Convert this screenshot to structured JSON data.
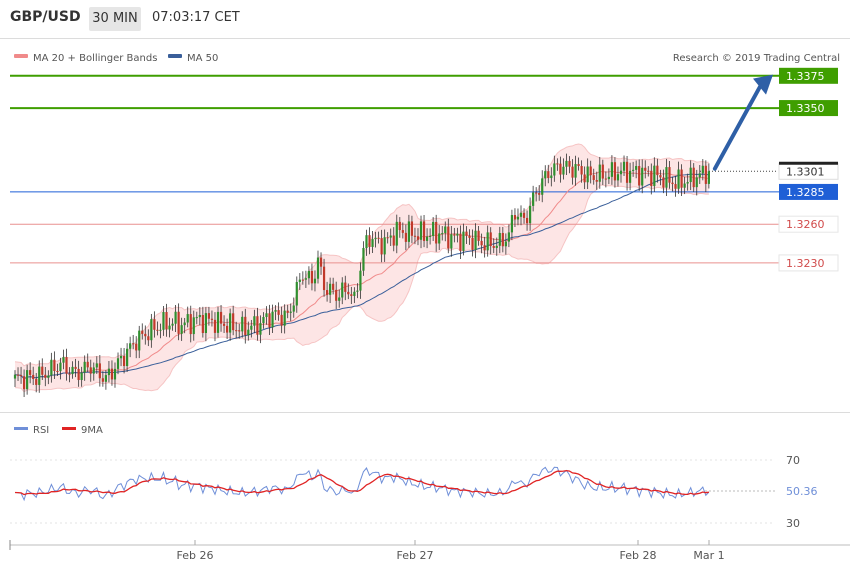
{
  "header": {
    "symbol": "GBP/USD",
    "timeframe": "30 MIN",
    "time": "07:03:17 CET"
  },
  "legend": {
    "ma20": "MA 20 + Bollinger Bands",
    "ma50": "MA 50",
    "credit": "Research © 2019 Trading Central",
    "ma20_color": "#f08a8a",
    "ma50_color": "#3a5f9a"
  },
  "chart_data": {
    "type": "candlestick",
    "y_range": [
      1.3116,
      1.3395
    ],
    "x_ticks": [
      "Feb 26",
      "Feb 27",
      "Feb 28",
      "Mar 1"
    ],
    "current_price": "1.3301",
    "levels": [
      {
        "value": "1.3375",
        "kind": "resistance",
        "color": "#3f9e00"
      },
      {
        "value": "1.3350",
        "kind": "resistance",
        "color": "#3f9e00"
      },
      {
        "value": "1.3285",
        "kind": "pivot",
        "color": "#1f5fd6"
      },
      {
        "value": "1.3260",
        "kind": "support",
        "color": "#e9908f"
      },
      {
        "value": "1.3230",
        "kind": "support",
        "color": "#e9908f"
      }
    ],
    "forecast_arrow": {
      "from": 1.3303,
      "to": 1.3372,
      "color": "#2e5fa6"
    },
    "anchors": [
      [
        0,
        1.314
      ],
      [
        8,
        1.3142
      ],
      [
        12,
        1.3147
      ],
      [
        15,
        1.3152
      ],
      [
        20,
        1.3144
      ],
      [
        25,
        1.315
      ],
      [
        30,
        1.314
      ],
      [
        35,
        1.3155
      ],
      [
        40,
        1.317
      ],
      [
        45,
        1.3178
      ],
      [
        48,
        1.3182
      ],
      [
        52,
        1.3184
      ],
      [
        55,
        1.3182
      ],
      [
        60,
        1.3186
      ],
      [
        65,
        1.3185
      ],
      [
        70,
        1.3182
      ],
      [
        75,
        1.3179
      ],
      [
        80,
        1.3182
      ],
      [
        85,
        1.319
      ],
      [
        90,
        1.3188
      ],
      [
        93,
        1.3209
      ],
      [
        95,
        1.3222
      ],
      [
        98,
        1.3215
      ],
      [
        100,
        1.3232
      ],
      [
        102,
        1.3212
      ],
      [
        106,
        1.3205
      ],
      [
        110,
        1.321
      ],
      [
        112,
        1.32
      ],
      [
        115,
        1.324
      ],
      [
        117,
        1.325
      ],
      [
        120,
        1.3245
      ],
      [
        123,
        1.3247
      ],
      [
        126,
        1.3255
      ],
      [
        130,
        1.3253
      ],
      [
        135,
        1.3252
      ],
      [
        140,
        1.3253
      ],
      [
        145,
        1.3249
      ],
      [
        150,
        1.3249
      ],
      [
        155,
        1.3245
      ],
      [
        160,
        1.3245
      ],
      [
        163,
        1.3252
      ],
      [
        165,
        1.327
      ],
      [
        168,
        1.3262
      ],
      [
        172,
        1.3285
      ],
      [
        176,
        1.33
      ],
      [
        180,
        1.3305
      ],
      [
        185,
        1.3303
      ],
      [
        187,
        1.33
      ],
      [
        190,
        1.3297
      ],
      [
        195,
        1.3298
      ],
      [
        200,
        1.3301
      ],
      [
        205,
        1.33
      ],
      [
        210,
        1.3299
      ],
      [
        215,
        1.3295
      ],
      [
        218,
        1.3292
      ],
      [
        222,
        1.3294
      ],
      [
        226,
        1.3298
      ],
      [
        229,
        1.3301
      ]
    ],
    "rsi": {
      "label": "RSI",
      "ma_label": "9MA",
      "value": "50.36",
      "levels": [
        "70",
        "30"
      ],
      "range": [
        14,
        86
      ],
      "rsi_color": "#6f8fd8",
      "ma_color": "#e02424"
    }
  }
}
